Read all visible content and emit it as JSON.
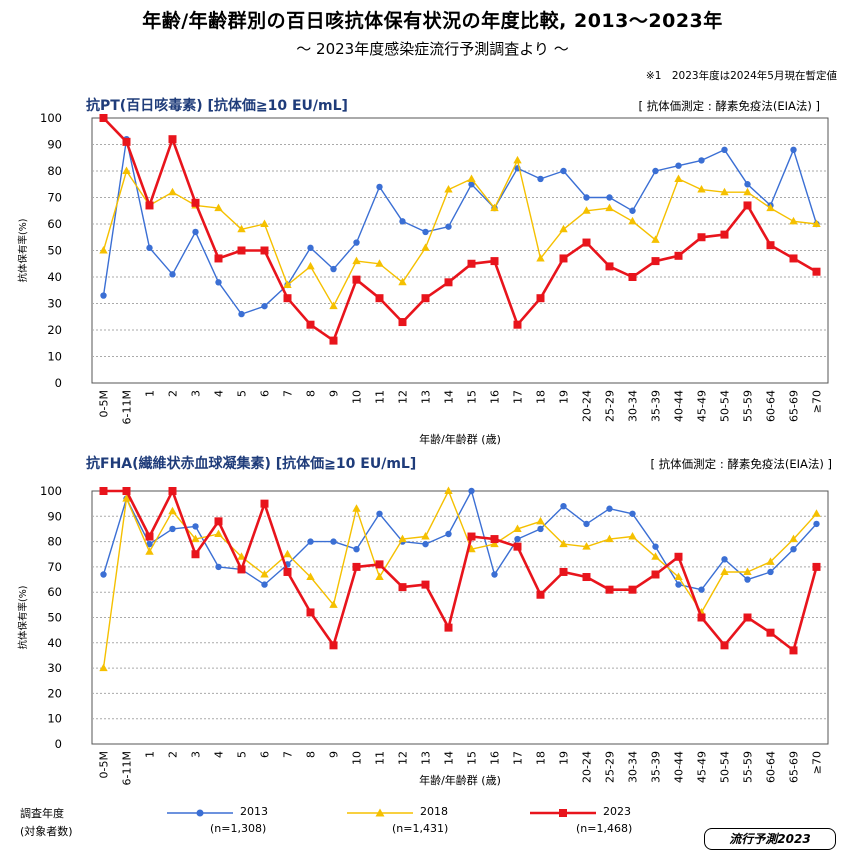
{
  "header": {
    "title": "年齢/年齢群別の百日咳抗体保有状況の年度比較, 2013〜2023年",
    "subtitle": "〜 2023年度感染症流行予測調査より 〜",
    "note": "※1　2023年度は2024年5月現在暫定値"
  },
  "legend": {
    "heading_line1": "調査年度",
    "heading_line2": "(対象者数)",
    "items": [
      {
        "label": "2013",
        "n": "(n=1,308)",
        "color": "#3b6fd4",
        "marker": "circle"
      },
      {
        "label": "2018",
        "n": "(n=1,431)",
        "color": "#f5c000",
        "marker": "triangle"
      },
      {
        "label": "2023",
        "n": "(n=1,468)",
        "color": "#e8141c",
        "marker": "square"
      }
    ]
  },
  "badge": "流行予測2023",
  "chart_data": [
    {
      "type": "line",
      "title": "抗PT(百日咳毒素) [抗体価≧10 EU/mL]",
      "method": "[ 抗体価測定 : 酵素免疫法(EIA法) ]",
      "xlabel": "年齢/年齢群 (歳)",
      "ylabel": "抗体保有率(%)",
      "ylim": [
        0,
        100
      ],
      "yticks": [
        0,
        10,
        20,
        30,
        40,
        50,
        60,
        70,
        80,
        90,
        100
      ],
      "grid": "horizontal dotted",
      "categories": [
        "0-5M",
        "6-11M",
        "1",
        "2",
        "3",
        "4",
        "5",
        "6",
        "7",
        "8",
        "9",
        "10",
        "11",
        "12",
        "13",
        "14",
        "15",
        "16",
        "17",
        "18",
        "19",
        "20-24",
        "25-29",
        "30-34",
        "35-39",
        "40-44",
        "45-49",
        "50-54",
        "55-59",
        "60-64",
        "65-69",
        "≥70"
      ],
      "series": [
        {
          "name": "2013",
          "values": [
            33,
            92,
            51,
            41,
            57,
            38,
            26,
            29,
            37,
            51,
            43,
            53,
            74,
            61,
            57,
            59,
            75,
            66,
            81,
            77,
            80,
            70,
            70,
            65,
            80,
            82,
            84,
            88,
            75,
            67,
            88,
            60
          ]
        },
        {
          "name": "2018",
          "values": [
            50,
            80,
            67,
            72,
            67,
            66,
            58,
            60,
            37,
            44,
            29,
            46,
            45,
            38,
            51,
            73,
            77,
            66,
            84,
            47,
            58,
            65,
            66,
            61,
            54,
            77,
            73,
            72,
            72,
            66,
            61,
            60
          ]
        },
        {
          "name": "2023",
          "values": [
            100,
            91,
            67,
            92,
            68,
            47,
            50,
            50,
            32,
            22,
            16,
            39,
            32,
            23,
            32,
            38,
            45,
            46,
            22,
            32,
            47,
            53,
            44,
            40,
            46,
            48,
            55,
            56,
            67,
            52,
            47,
            42
          ]
        }
      ]
    },
    {
      "type": "line",
      "title": "抗FHA(繊維状赤血球凝集素) [抗体価≧10 EU/mL]",
      "method": "[ 抗体価測定 : 酵素免疫法(EIA法) ]",
      "xlabel": "年齢/年齢群 (歳)",
      "ylabel": "抗体保有率(%)",
      "ylim": [
        0,
        100
      ],
      "yticks": [
        0,
        10,
        20,
        30,
        40,
        50,
        60,
        70,
        80,
        90,
        100
      ],
      "grid": "horizontal dotted",
      "categories": [
        "0-5M",
        "6-11M",
        "1",
        "2",
        "3",
        "4",
        "5",
        "6",
        "7",
        "8",
        "9",
        "10",
        "11",
        "12",
        "13",
        "14",
        "15",
        "16",
        "17",
        "18",
        "19",
        "20-24",
        "25-29",
        "30-34",
        "35-39",
        "40-44",
        "45-49",
        "50-54",
        "55-59",
        "60-64",
        "65-69",
        "≥70"
      ],
      "series": [
        {
          "name": "2013",
          "values": [
            67,
            97,
            79,
            85,
            86,
            70,
            69,
            63,
            71,
            80,
            80,
            77,
            91,
            80,
            79,
            83,
            100,
            67,
            81,
            85,
            94,
            87,
            93,
            91,
            78,
            63,
            61,
            73,
            65,
            68,
            77,
            87
          ]
        },
        {
          "name": "2018",
          "values": [
            30,
            97,
            76,
            92,
            81,
            83,
            74,
            67,
            75,
            66,
            55,
            93,
            66,
            81,
            82,
            100,
            77,
            79,
            85,
            88,
            79,
            78,
            81,
            82,
            74,
            66,
            52,
            68,
            68,
            72,
            81,
            91
          ]
        },
        {
          "name": "2023",
          "values": [
            100,
            100,
            82,
            100,
            75,
            88,
            69,
            95,
            68,
            52,
            39,
            70,
            71,
            62,
            63,
            46,
            82,
            81,
            78,
            59,
            68,
            66,
            61,
            61,
            67,
            74,
            50,
            39,
            50,
            44,
            37,
            70
          ]
        }
      ]
    }
  ]
}
